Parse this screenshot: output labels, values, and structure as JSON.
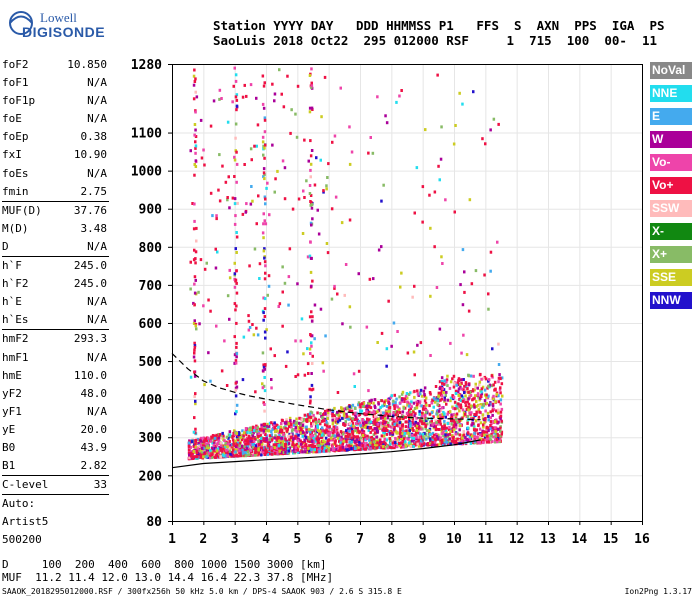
{
  "logo": {
    "line1": "Lowell",
    "line2": "DIGISONDE"
  },
  "header": {
    "line1": "Station YYYY DAY   DDD HHMMSS P1   FFS  S  AXN  PPS  IGA  PS",
    "line2": "SaoLuis 2018 Oct22  295 012000 RSF     1  715  100  00-  11"
  },
  "params": [
    [
      {
        "label": "foF2",
        "value": "10.850"
      },
      {
        "label": "foF1",
        "value": "N/A"
      },
      {
        "label": "foF1p",
        "value": "N/A"
      },
      {
        "label": "foE",
        "value": "N/A"
      },
      {
        "label": "foEp",
        "value": "0.38"
      },
      {
        "label": "fxI",
        "value": "10.90"
      },
      {
        "label": "foEs",
        "value": "N/A"
      },
      {
        "label": "fmin",
        "value": "2.75"
      }
    ],
    [
      {
        "label": "MUF(D)",
        "value": "37.76"
      },
      {
        "label": "M(D)",
        "value": "3.48"
      },
      {
        "label": "D",
        "value": "N/A"
      }
    ],
    [
      {
        "label": "h`F",
        "value": "245.0"
      },
      {
        "label": "h`F2",
        "value": "245.0"
      },
      {
        "label": "h`E",
        "value": "N/A"
      },
      {
        "label": "h`Es",
        "value": "N/A"
      }
    ],
    [
      {
        "label": "hmF2",
        "value": "293.3"
      },
      {
        "label": "hmF1",
        "value": "N/A"
      },
      {
        "label": "hmE",
        "value": "110.0"
      },
      {
        "label": "yF2",
        "value": "48.0"
      },
      {
        "label": "yF1",
        "value": "N/A"
      },
      {
        "label": "yE",
        "value": "20.0"
      },
      {
        "label": "B0",
        "value": "43.9"
      },
      {
        "label": "B1",
        "value": "2.82"
      }
    ],
    [
      {
        "label": "C-level",
        "value": "33"
      }
    ],
    [
      {
        "label": "Auto:",
        "value": ""
      },
      {
        "label": "Artist5",
        "value": ""
      },
      {
        "label": "500200",
        "value": ""
      }
    ]
  ],
  "legend": [
    {
      "label": "NoVal",
      "color": "#888888"
    },
    {
      "label": "NNE",
      "color": "#22ddee"
    },
    {
      "label": "E",
      "color": "#44aaee"
    },
    {
      "label": "W",
      "color": "#aa0099"
    },
    {
      "label": "Vo-",
      "color": "#ee44aa"
    },
    {
      "label": "Vo+",
      "color": "#ee1144"
    },
    {
      "label": "SSW",
      "color": "#ffbbbb"
    },
    {
      "label": "X-",
      "color": "#118811"
    },
    {
      "label": "X+",
      "color": "#88bb66"
    },
    {
      "label": "SSE",
      "color": "#cccc22"
    },
    {
      "label": "NNW",
      "color": "#2211cc"
    }
  ],
  "footer": {
    "line1": "D     100  200  400  600  800 1000 1500 3000 [km]",
    "line2": "MUF  11.2 11.4 12.0 13.0 14.4 16.4 22.3 37.8 [MHz]",
    "line3": "SAAOK_2018295012000.RSF / 300fx256h 50 kHz 5.0 km / DPS-4 SAAOK 903 / 2.6 S 315.8 E",
    "version": "Ion2Png 1.3.17"
  },
  "chart_data": {
    "type": "scatter",
    "x_ticks": [
      1,
      2,
      3,
      4,
      5,
      6,
      7,
      8,
      9,
      10,
      11,
      12,
      13,
      14,
      15,
      16
    ],
    "y_ticks": [
      80,
      200,
      300,
      400,
      500,
      600,
      700,
      800,
      900,
      1000,
      1100,
      1280
    ],
    "xlim": [
      1,
      16
    ],
    "ylim": [
      80,
      1280
    ],
    "grid": true,
    "series": [
      {
        "name": "lower",
        "x": [
          1,
          2,
          3,
          4,
          5,
          6,
          7,
          8,
          9,
          10,
          10.85
        ],
        "y": [
          220,
          231,
          236,
          241,
          245,
          250,
          256,
          262,
          270,
          280,
          293
        ]
      },
      {
        "name": "upper",
        "x": [
          1,
          1.5,
          2,
          2.5,
          3,
          3.5,
          4,
          5,
          6,
          7,
          8,
          9,
          10,
          10.85
        ],
        "y": [
          520,
          480,
          448,
          430,
          418,
          408,
          400,
          385,
          372,
          362,
          355,
          350,
          348,
          346
        ]
      }
    ]
  }
}
